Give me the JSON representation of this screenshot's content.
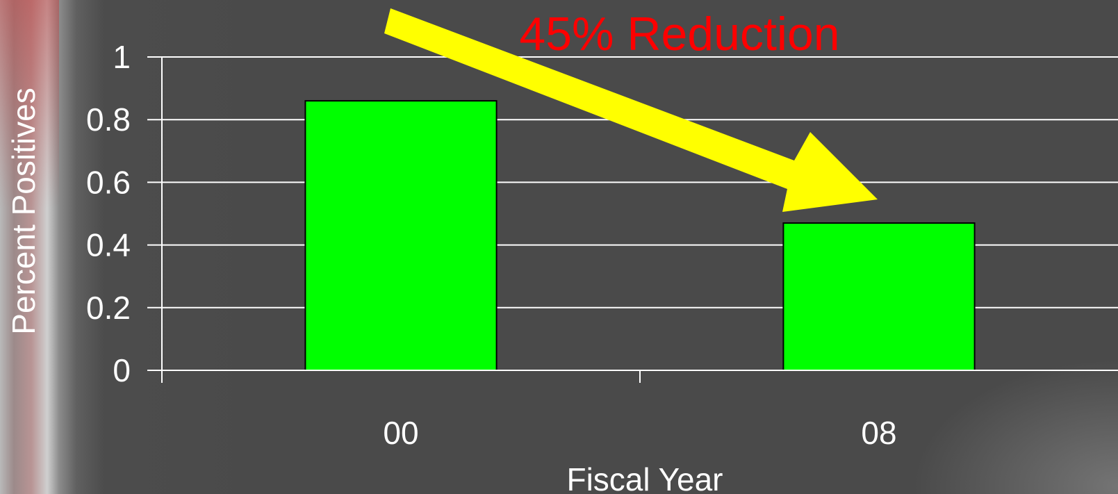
{
  "chart_data": {
    "type": "bar",
    "categories": [
      "00",
      "08"
    ],
    "values": [
      0.86,
      0.47
    ],
    "ylabel": "Percent Positives",
    "xlabel": "Fiscal Year",
    "ylim": [
      0,
      1
    ],
    "yticks": [
      "0",
      "0.2",
      "0.4",
      "0.6",
      "0.8",
      "1"
    ],
    "grid": true,
    "bar_color": "#00ff00",
    "annotation": "45% Reduction",
    "arrow_color": "#ffff00"
  }
}
